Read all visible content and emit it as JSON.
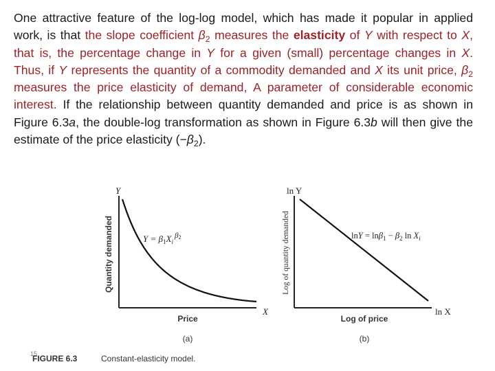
{
  "paragraph": {
    "p1": "One attractive feature of the log-log model, which has made it popular in applied work, is that ",
    "p2": "the slope coefficient ",
    "beta": "β",
    "sub2": "2",
    "p3": " measures the ",
    "elasticity": "elasticity",
    "p4": " of ",
    "Y": "Y",
    "p5": " with respect to ",
    "X": "X",
    "p6": ", that is, the percentage change in ",
    "p7": " for a given (small) percentage changes in ",
    "p8": ". Thus, if ",
    "p9": " represents the quantity of a commodity demanded and ",
    "p10": " its unit price, ",
    "p11": " measures the price elasticity of demand, A parameter of considerable economic interest.",
    "p12": " If the relationship between quantity demanded and price is as shown in Figure 6.3",
    "a": "a",
    "p13": ", the double-log transformation as shown in Figure 6.3",
    "b": "b",
    "p14": " will then give the estimate of the price elasticity (−",
    "p15": ")."
  },
  "figure": {
    "panel_a": {
      "y_axis_letter": "Y",
      "x_axis_letter": "X",
      "ylabel": "Quantity demanded",
      "xlabel": "Price",
      "equation": "Y = β₁Xᵢ^β₂",
      "eq_main": "Y = β",
      "eq_sub1": "1",
      "eq_X": "X",
      "eq_i": "i",
      "eq_exp": "β",
      "eq_exp_sub": "2",
      "caption": "(a)"
    },
    "panel_b": {
      "y_axis_letter": "ln Y",
      "x_axis_letter": "ln X",
      "ylabel": "Log of quantity demanded",
      "xlabel": "Log of price",
      "equation": "ln Y = ln β₁ − β₂ ln Xᵢ",
      "eq_a": "ln",
      "eq_Y": "Y",
      "eq_b": " = ln",
      "eq_beta": "β",
      "eq_sub1": "1",
      "eq_minus": " − ",
      "eq_sub2": "2",
      "eq_c": " ln ",
      "eq_X": "X",
      "eq_i": "i",
      "caption": "(b)"
    },
    "caption_label": "FIGURE 6.3",
    "caption_text": "Constant-elasticity model."
  },
  "slide_number": "15",
  "colors": {
    "highlight": "#9b2226",
    "text": "#1a1a1a"
  }
}
